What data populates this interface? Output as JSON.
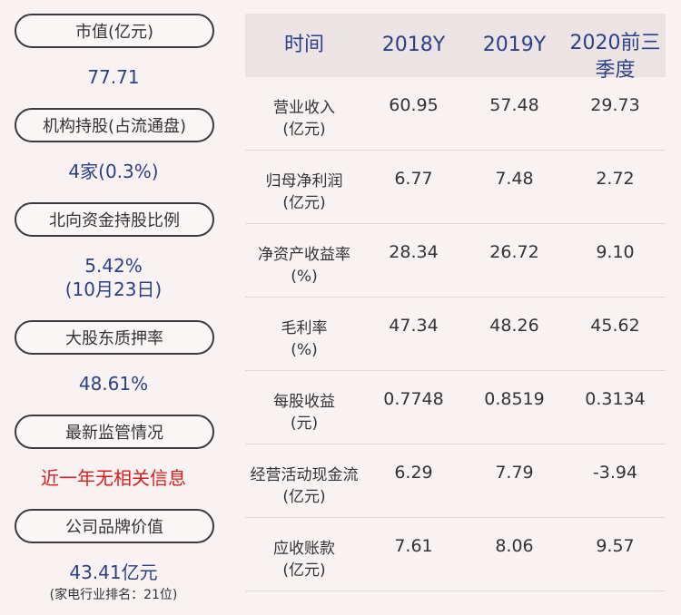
{
  "left": {
    "items": [
      {
        "label": "市值(亿元)",
        "value": "77.71"
      },
      {
        "label": "机构持股(占流通盘)",
        "value": "4家(0.3%)"
      },
      {
        "label": "北向资金持股比例",
        "value": "5.42%",
        "value2": "(10月23日)"
      },
      {
        "label": "大股东质押率",
        "value": "48.61%"
      },
      {
        "label": "最新监管情况",
        "value": "近一年无相关信息"
      },
      {
        "label": "公司品牌价值",
        "value": "43.41亿元",
        "note": "(家电行业排名：21位)"
      }
    ]
  },
  "table": {
    "headers": [
      "时间",
      "2018Y",
      "2019Y",
      "2020前三季度"
    ],
    "rows": [
      {
        "label": "营业收入",
        "unit": "(亿元)",
        "values": [
          "60.95",
          "57.48",
          "29.73"
        ]
      },
      {
        "label": "归母净利润",
        "unit": "(亿元)",
        "values": [
          "6.77",
          "7.48",
          "2.72"
        ]
      },
      {
        "label": "净资产收益率",
        "unit": "(%)",
        "values": [
          "28.34",
          "26.72",
          "9.10"
        ]
      },
      {
        "label": "毛利率",
        "unit": "(%)",
        "values": [
          "47.34",
          "48.26",
          "45.62"
        ]
      },
      {
        "label": "每股收益",
        "unit": "(元)",
        "values": [
          "0.7748",
          "0.8519",
          "0.3134"
        ]
      },
      {
        "label": "经营活动现金流",
        "unit": "(亿元)",
        "values": [
          "6.29",
          "7.79",
          "-3.94"
        ]
      },
      {
        "label": "应收账款",
        "unit": "(亿元)",
        "values": [
          "7.61",
          "8.06",
          "9.57"
        ]
      }
    ]
  }
}
